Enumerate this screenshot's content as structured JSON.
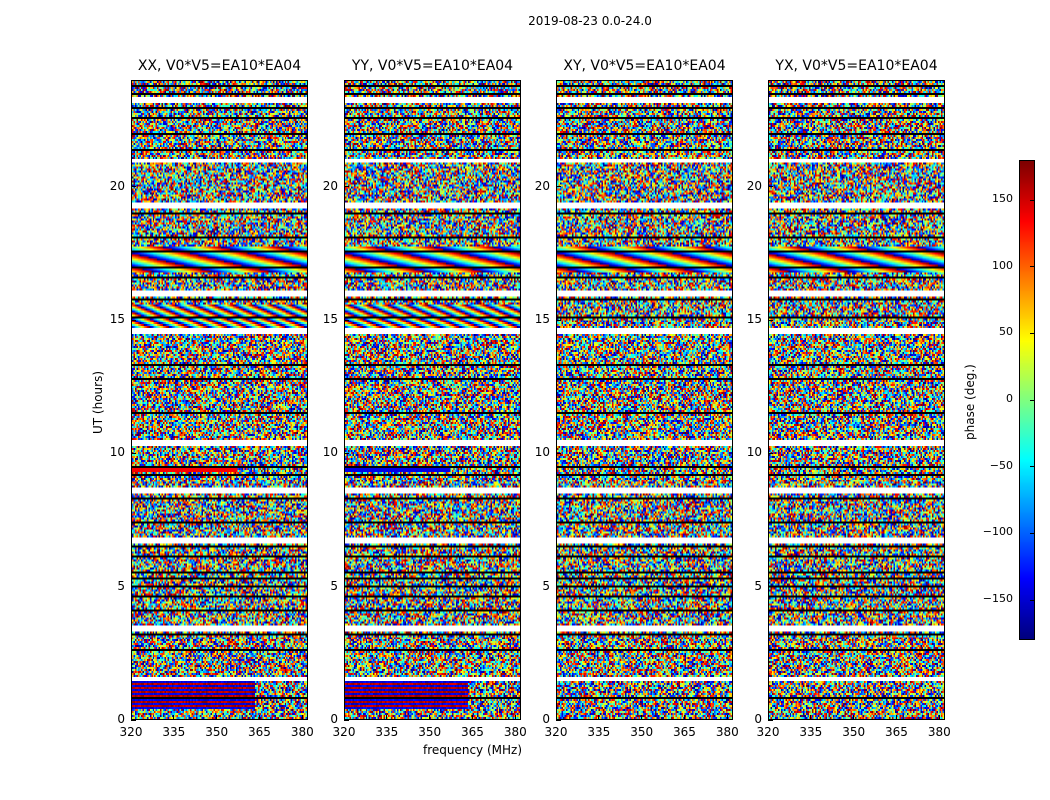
{
  "figure": {
    "title": "2019-08-23 0.0-24.0"
  },
  "chart_data": [
    {
      "type": "heatmap",
      "title": "XX, V0*V5=EA10*EA04",
      "xlabel": "",
      "ylabel": "UT (hours)",
      "xlim": [
        320,
        382
      ],
      "ylim": [
        0,
        24
      ],
      "xticks": [
        320,
        335,
        350,
        365,
        380
      ],
      "yticks": [
        0,
        5,
        10,
        15,
        20
      ],
      "colormap": "jet"
    },
    {
      "type": "heatmap",
      "title": "YY, V0*V5=EA10*EA04",
      "xlabel": "frequency (MHz)",
      "ylabel": "",
      "xlim": [
        320,
        382
      ],
      "ylim": [
        0,
        24
      ],
      "xticks": [
        320,
        335,
        350,
        365,
        380
      ],
      "yticks": [
        0,
        5,
        10,
        15,
        20
      ],
      "colormap": "jet"
    },
    {
      "type": "heatmap",
      "title": "XY, V0*V5=EA10*EA04",
      "xlabel": "",
      "ylabel": "",
      "xlim": [
        320,
        382
      ],
      "ylim": [
        0,
        24
      ],
      "xticks": [
        320,
        335,
        350,
        365,
        380
      ],
      "yticks": [
        0,
        5,
        10,
        15,
        20
      ],
      "colormap": "jet"
    },
    {
      "type": "heatmap",
      "title": "YX, V0*V5=EA10*EA04",
      "xlabel": "",
      "ylabel": "",
      "xlim": [
        320,
        382
      ],
      "ylim": [
        0,
        24
      ],
      "xticks": [
        320,
        335,
        350,
        365,
        380
      ],
      "yticks": [
        0,
        5,
        10,
        15,
        20
      ],
      "colormap": "jet"
    }
  ],
  "colorbar": {
    "label": "phase (deg.)",
    "range": [
      -180,
      180
    ],
    "ticks": [
      -150,
      -100,
      -50,
      0,
      50,
      100,
      150
    ],
    "tick_labels": [
      "−150",
      "−100",
      "−50",
      "0",
      "50",
      "100",
      "150"
    ]
  }
}
